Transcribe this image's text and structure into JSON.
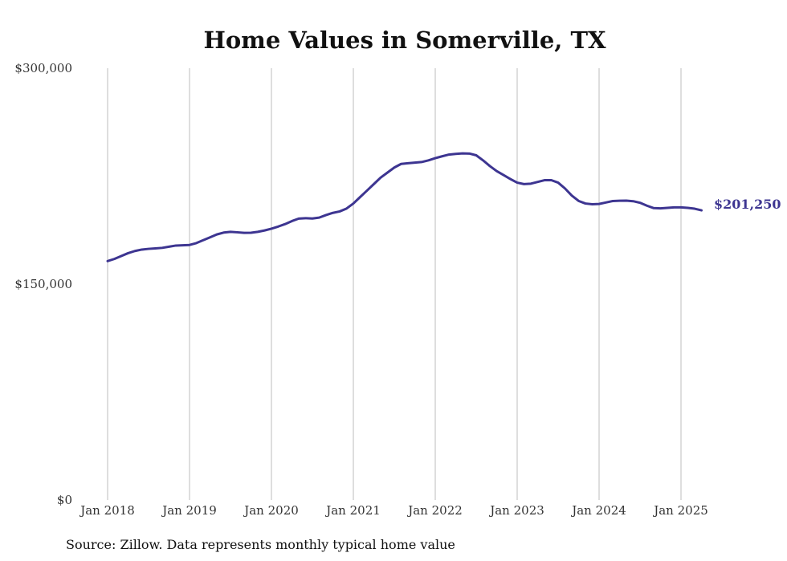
{
  "chart_data": {
    "type": "line",
    "title": "Home Values in Somerville, TX",
    "xlabel": "",
    "ylabel": "",
    "ylim": [
      0,
      300000
    ],
    "y_ticks": [
      {
        "value": 0,
        "label": "$0"
      },
      {
        "value": 150000,
        "label": "$150,000"
      },
      {
        "value": 300000,
        "label": "$300,000"
      }
    ],
    "x_ticks": [
      {
        "value": 2018,
        "label": "Jan 2018"
      },
      {
        "value": 2019,
        "label": "Jan 2019"
      },
      {
        "value": 2020,
        "label": "Jan 2020"
      },
      {
        "value": 2021,
        "label": "Jan 2021"
      },
      {
        "value": 2022,
        "label": "Jan 2022"
      },
      {
        "value": 2023,
        "label": "Jan 2023"
      },
      {
        "value": 2024,
        "label": "Jan 2024"
      },
      {
        "value": 2025,
        "label": "Jan 2025"
      }
    ],
    "xlim": [
      2018,
      2025.25
    ],
    "grid": "vertical",
    "line_color": "#3d3591",
    "end_label": "$201,250",
    "series": [
      {
        "x": [
          2018.0,
          2018.083,
          2018.167,
          2018.25,
          2018.333,
          2018.417,
          2018.5,
          2018.583,
          2018.667,
          2018.75,
          2018.833,
          2018.917,
          2019.0,
          2019.083,
          2019.167,
          2019.25,
          2019.333,
          2019.417,
          2019.5,
          2019.583,
          2019.667,
          2019.75,
          2019.833,
          2019.917,
          2020.0,
          2020.083,
          2020.167,
          2020.25,
          2020.333,
          2020.417,
          2020.5,
          2020.583,
          2020.667,
          2020.75,
          2020.833,
          2020.917,
          2021.0,
          2021.083,
          2021.167,
          2021.25,
          2021.333,
          2021.417,
          2021.5,
          2021.583,
          2021.667,
          2021.75,
          2021.833,
          2021.917,
          2022.0,
          2022.083,
          2022.167,
          2022.25,
          2022.333,
          2022.417,
          2022.5,
          2022.583,
          2022.667,
          2022.75,
          2022.833,
          2022.917,
          2023.0,
          2023.083,
          2023.167,
          2023.25,
          2023.333,
          2023.417,
          2023.5,
          2023.583,
          2023.667,
          2023.75,
          2023.833,
          2023.917,
          2024.0,
          2024.083,
          2024.167,
          2024.25,
          2024.333,
          2024.417,
          2024.5,
          2024.583,
          2024.667,
          2024.75,
          2024.833,
          2024.917,
          2025.0,
          2025.083,
          2025.167,
          2025.25
        ],
        "y": [
          166000,
          167500,
          169500,
          171500,
          173000,
          174000,
          174500,
          174800,
          175200,
          176000,
          176800,
          177000,
          177200,
          178500,
          180500,
          182500,
          184500,
          185800,
          186300,
          186000,
          185600,
          185700,
          186300,
          187300,
          188500,
          190000,
          191700,
          193800,
          195500,
          195800,
          195600,
          196200,
          198000,
          199500,
          200500,
          202500,
          206000,
          210500,
          215000,
          219500,
          224000,
          227500,
          231000,
          233500,
          234000,
          234400,
          234800,
          236000,
          237500,
          238800,
          240000,
          240500,
          240800,
          240700,
          239500,
          236000,
          232000,
          228500,
          225800,
          223000,
          220500,
          219500,
          219800,
          221000,
          222200,
          222200,
          220500,
          216500,
          211500,
          207800,
          206000,
          205500,
          205700,
          206700,
          207700,
          207900,
          208000,
          207600,
          206500,
          204500,
          202800,
          202600,
          203000,
          203300,
          203300,
          203000,
          202400,
          201250
        ]
      }
    ]
  },
  "footer": {
    "source": "Source: Zillow. Data represents monthly typical home value"
  }
}
